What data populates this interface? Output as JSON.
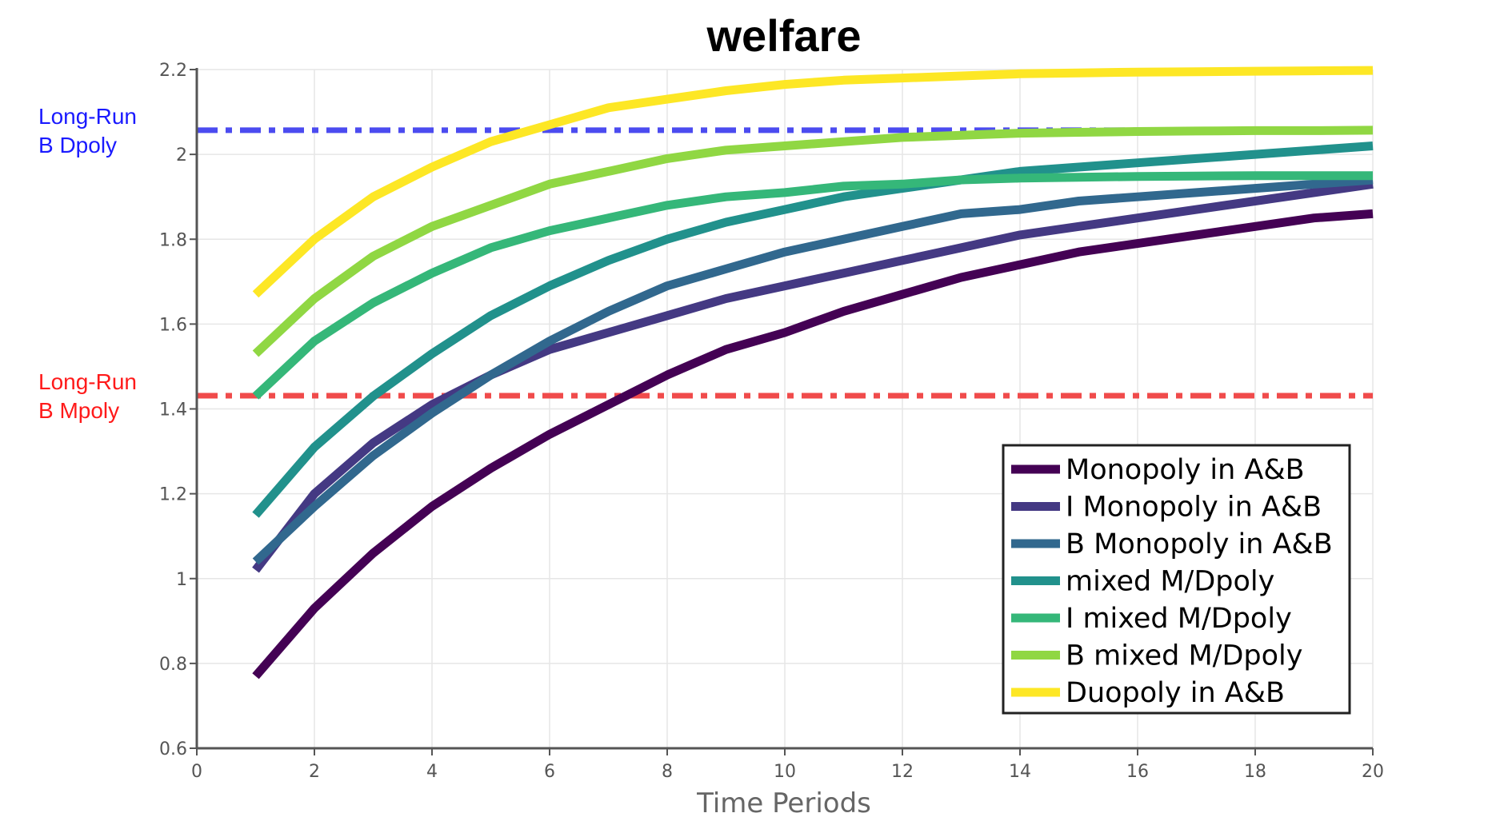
{
  "chart_data": {
    "type": "line",
    "title": "welfare",
    "xlabel": "Time Periods",
    "ylabel": "",
    "xlim": [
      0,
      20
    ],
    "ylim": [
      0.6,
      2.2
    ],
    "xticks": [
      0,
      2,
      4,
      6,
      8,
      10,
      12,
      14,
      16,
      18,
      20
    ],
    "yticks": [
      0.6,
      0.8,
      1,
      1.2,
      1.4,
      1.6,
      1.8,
      2,
      2.2
    ],
    "grid": true,
    "legend_position": "bottom-right",
    "x": [
      1,
      2,
      3,
      4,
      5,
      6,
      7,
      8,
      9,
      10,
      11,
      12,
      13,
      14,
      15,
      16,
      17,
      18,
      19,
      20
    ],
    "series": [
      {
        "name": "Monopoly in A&B",
        "color": "#440154",
        "values": [
          0.77,
          0.93,
          1.06,
          1.17,
          1.26,
          1.34,
          1.41,
          1.48,
          1.54,
          1.58,
          1.63,
          1.67,
          1.71,
          1.74,
          1.77,
          1.79,
          1.81,
          1.83,
          1.85,
          1.86
        ]
      },
      {
        "name": "I Monopoly in A&B",
        "color": "#443983",
        "values": [
          1.02,
          1.2,
          1.32,
          1.41,
          1.48,
          1.54,
          1.58,
          1.62,
          1.66,
          1.69,
          1.72,
          1.75,
          1.78,
          1.81,
          1.83,
          1.85,
          1.87,
          1.89,
          1.91,
          1.93
        ]
      },
      {
        "name": "B Monopoly in A&B",
        "color": "#31688e",
        "values": [
          1.04,
          1.17,
          1.29,
          1.39,
          1.48,
          1.56,
          1.63,
          1.69,
          1.73,
          1.77,
          1.8,
          1.83,
          1.86,
          1.87,
          1.89,
          1.9,
          1.91,
          1.92,
          1.93,
          1.94
        ]
      },
      {
        "name": "mixed M/Dpoly",
        "color": "#21918c",
        "values": [
          1.15,
          1.31,
          1.43,
          1.53,
          1.62,
          1.69,
          1.75,
          1.8,
          1.84,
          1.87,
          1.9,
          1.92,
          1.94,
          1.96,
          1.97,
          1.98,
          1.99,
          2.0,
          2.01,
          2.02
        ]
      },
      {
        "name": "I mixed M/Dpoly",
        "color": "#35b779",
        "values": [
          1.43,
          1.56,
          1.65,
          1.72,
          1.78,
          1.82,
          1.85,
          1.88,
          1.9,
          1.91,
          1.925,
          1.93,
          1.94,
          1.944,
          1.946,
          1.948,
          1.949,
          1.95,
          1.95,
          1.95
        ]
      },
      {
        "name": "B mixed M/Dpoly",
        "color": "#90d743",
        "values": [
          1.53,
          1.66,
          1.76,
          1.83,
          1.88,
          1.93,
          1.96,
          1.99,
          2.01,
          2.02,
          2.03,
          2.04,
          2.045,
          2.05,
          2.052,
          2.054,
          2.055,
          2.056,
          2.056,
          2.057
        ]
      },
      {
        "name": "Duopoly in A&B",
        "color": "#fde725",
        "values": [
          1.67,
          1.8,
          1.9,
          1.97,
          2.03,
          2.07,
          2.11,
          2.13,
          2.15,
          2.165,
          2.175,
          2.18,
          2.185,
          2.19,
          2.192,
          2.194,
          2.195,
          2.196,
          2.197,
          2.198
        ]
      }
    ],
    "reference_lines": [
      {
        "label_line1": "Long-Run",
        "label_line2": "B Dpoly",
        "y": 2.057,
        "color": "#4b4bf0",
        "text_color": "#1a1aff"
      },
      {
        "label_line1": "Long-Run",
        "label_line2": "B Mpoly",
        "y": 1.431,
        "color": "#f04b4b",
        "text_color": "#ff1a1a"
      }
    ]
  }
}
